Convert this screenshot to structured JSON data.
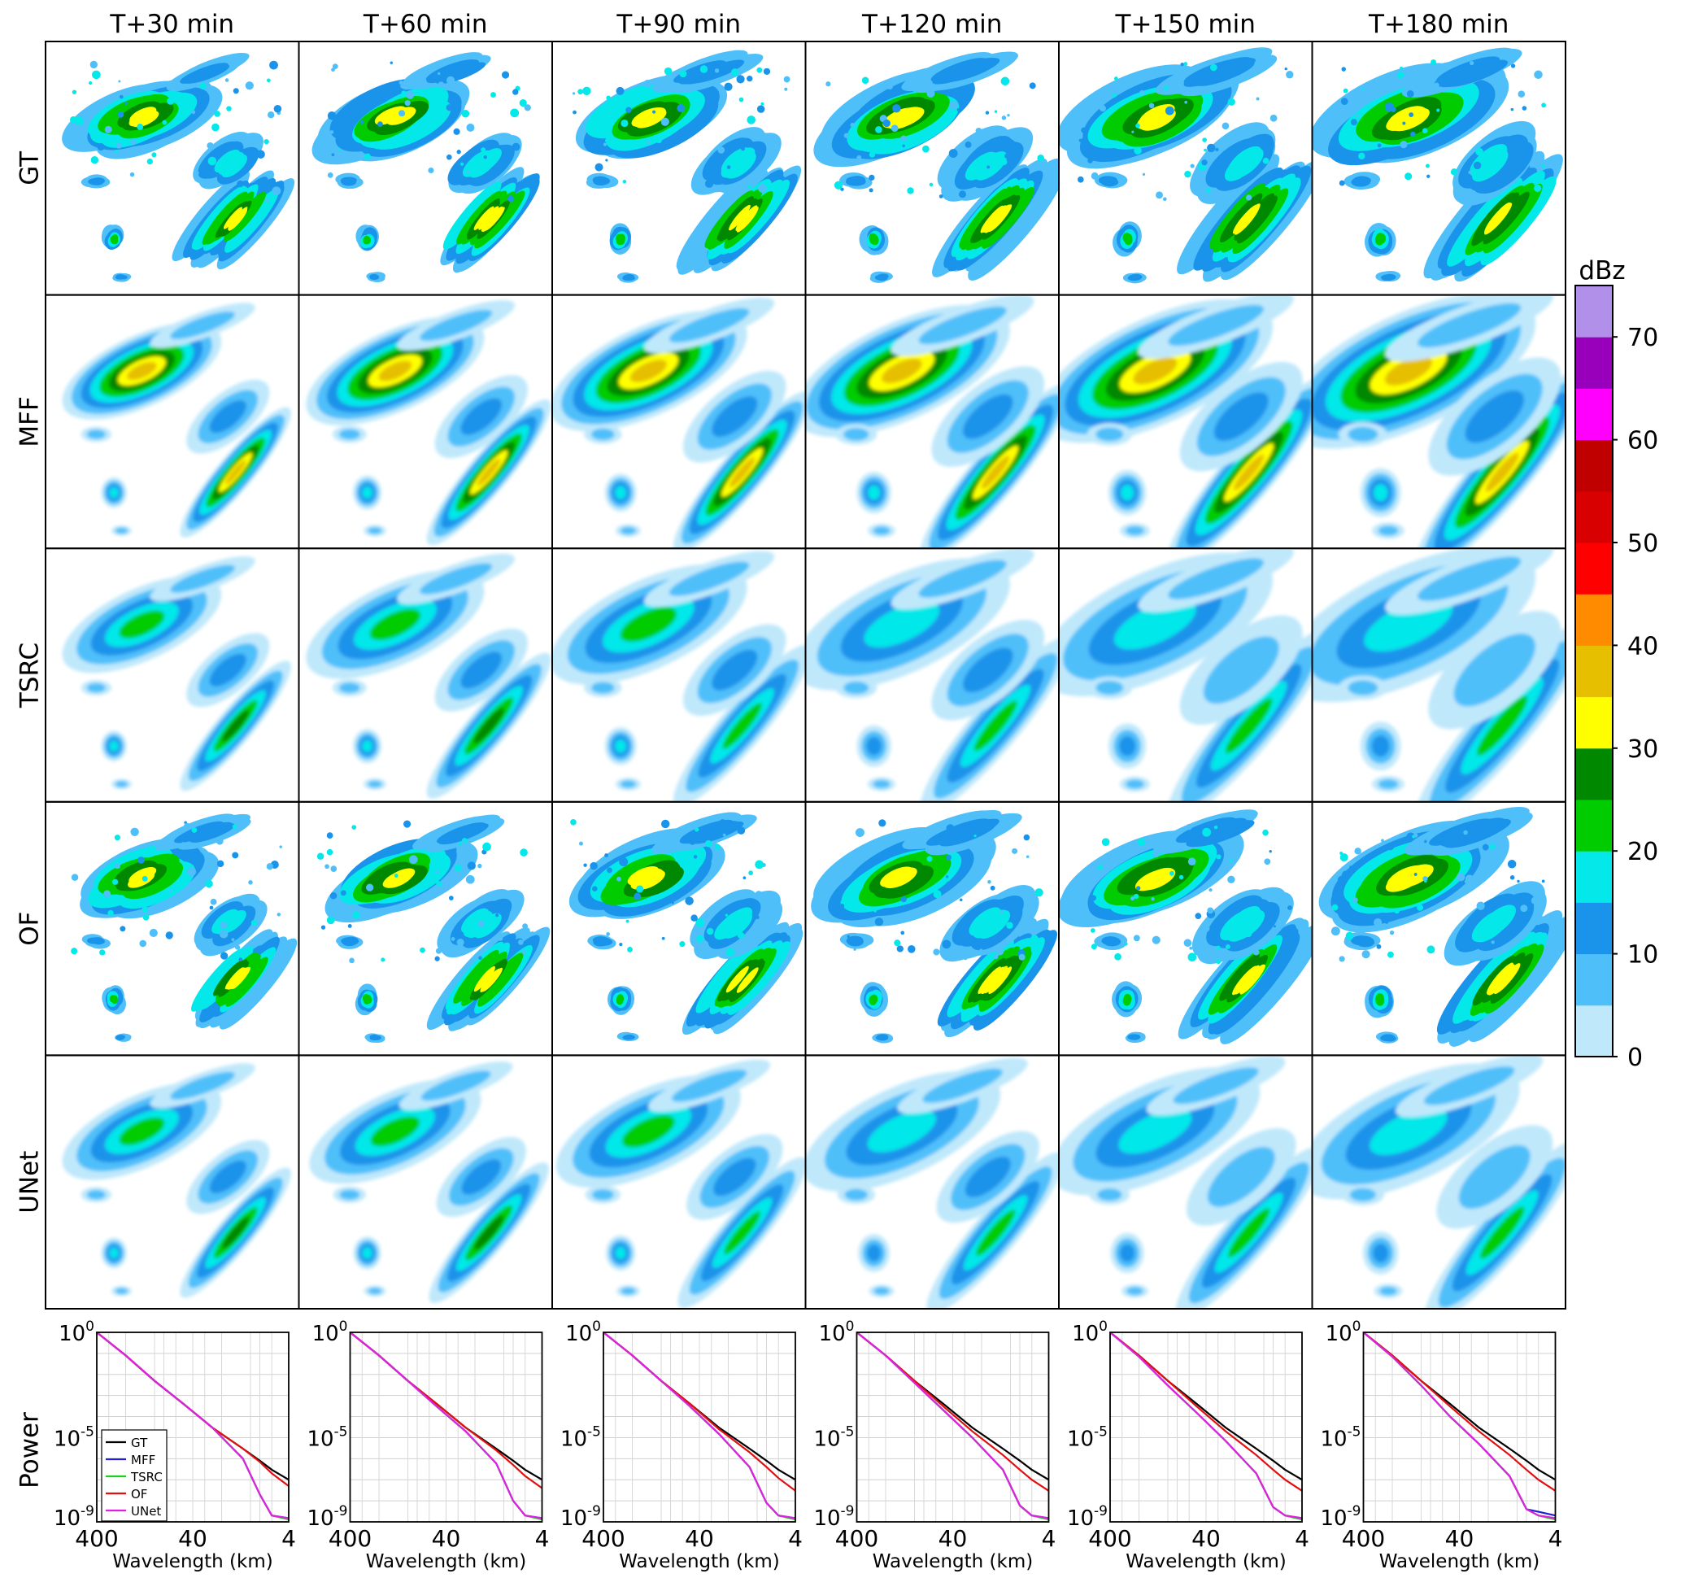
{
  "columns": [
    "T+30 min",
    "T+60 min",
    "T+90 min",
    "T+120 min",
    "T+150 min",
    "T+180 min"
  ],
  "rows": [
    "GT",
    "MFF",
    "TSRC",
    "OF",
    "UNet"
  ],
  "colorbar": {
    "unit": "dBz",
    "ticks": [
      "0",
      "10",
      "20",
      "30",
      "40",
      "50",
      "60",
      "70"
    ],
    "min": 0,
    "max": 75,
    "step": 5,
    "colors": [
      "#bfe8fb",
      "#4fbffa",
      "#1a93ea",
      "#04e8e9",
      "#00cc00",
      "#008800",
      "#ffff00",
      "#e6c000",
      "#ff8c00",
      "#ff0000",
      "#d80000",
      "#c00000",
      "#ff00ff",
      "#9900bb",
      "#b090e8"
    ]
  },
  "chart_data": {
    "type": "line",
    "ylabel": "Power",
    "xlabel": "Wavelength (km)",
    "x_ticks": [
      "400",
      "40",
      "4"
    ],
    "y_ticks": [
      "10^0",
      "10^-5",
      "10^-9"
    ],
    "xscale": "log",
    "yscale": "log",
    "xlim": [
      400,
      4
    ],
    "ylim": [
      1e-09,
      1
    ],
    "legend_entries": [
      "GT",
      "MFF",
      "TSRC",
      "OF",
      "UNet"
    ],
    "legend_placement": "lower-left (first panel only)",
    "series_colors": {
      "GT": "#000000",
      "MFF": "#1f1fd6",
      "TSRC": "#22cc22",
      "OF": "#e01010",
      "UNet": "#e020e0"
    },
    "wavelength_km": [
      400,
      200,
      100,
      50,
      25,
      12,
      8,
      6,
      4
    ],
    "panels": [
      {
        "column": "T+30 min",
        "series": [
          {
            "name": "GT",
            "values": [
              1,
              0.08,
              0.005,
              0.0004,
              3e-05,
              3e-06,
              8e-07,
              3e-07,
              1e-07
            ]
          },
          {
            "name": "MFF",
            "values": [
              1,
              0.08,
              0.005,
              0.0004,
              3e-05,
              1e-06,
              2e-08,
              2e-09,
              1.5e-09
            ]
          },
          {
            "name": "TSRC",
            "values": [
              1,
              0.08,
              0.005,
              0.0004,
              3e-05,
              1e-06,
              2e-08,
              2e-09,
              1.3e-09
            ]
          },
          {
            "name": "OF",
            "values": [
              1,
              0.08,
              0.005,
              0.0004,
              3e-05,
              3e-06,
              7e-07,
              2e-07,
              5e-08
            ]
          },
          {
            "name": "UNet",
            "values": [
              1,
              0.08,
              0.005,
              0.0004,
              3e-05,
              1e-06,
              2e-08,
              2e-09,
              1.5e-09
            ]
          }
        ]
      },
      {
        "column": "T+60 min",
        "series": [
          {
            "name": "GT",
            "values": [
              1,
              0.08,
              0.005,
              0.0004,
              3e-05,
              3e-06,
              8e-07,
              3e-07,
              1e-07
            ]
          },
          {
            "name": "MFF",
            "values": [
              1,
              0.08,
              0.005,
              0.0003,
              2e-05,
              6e-07,
              1e-08,
              2e-09,
              1.5e-09
            ]
          },
          {
            "name": "TSRC",
            "values": [
              1,
              0.08,
              0.005,
              0.0003,
              2e-05,
              6e-07,
              1e-08,
              2e-09,
              1.3e-09
            ]
          },
          {
            "name": "OF",
            "values": [
              1,
              0.08,
              0.005,
              0.0004,
              3e-05,
              2.5e-06,
              5e-07,
              1.5e-07,
              4e-08
            ]
          },
          {
            "name": "UNet",
            "values": [
              1,
              0.08,
              0.005,
              0.0003,
              2e-05,
              6e-07,
              1e-08,
              2e-09,
              1.5e-09
            ]
          }
        ]
      },
      {
        "column": "T+90 min",
        "series": [
          {
            "name": "GT",
            "values": [
              1,
              0.08,
              0.005,
              0.0004,
              3e-05,
              3e-06,
              8e-07,
              3e-07,
              1e-07
            ]
          },
          {
            "name": "MFF",
            "values": [
              1,
              0.08,
              0.005,
              0.0003,
              1.5e-05,
              4e-07,
              8e-09,
              2e-09,
              1.5e-09
            ]
          },
          {
            "name": "TSRC",
            "values": [
              1,
              0.08,
              0.005,
              0.0003,
              1.5e-05,
              4e-07,
              8e-09,
              2e-09,
              1.3e-09
            ]
          },
          {
            "name": "OF",
            "values": [
              1,
              0.08,
              0.005,
              0.0004,
              2.5e-05,
              2e-06,
              4e-07,
              1.2e-07,
              3e-08
            ]
          },
          {
            "name": "UNet",
            "values": [
              1,
              0.08,
              0.005,
              0.0003,
              1.5e-05,
              4e-07,
              8e-09,
              2e-09,
              1.5e-09
            ]
          }
        ]
      },
      {
        "column": "T+120 min",
        "series": [
          {
            "name": "GT",
            "values": [
              1,
              0.08,
              0.005,
              0.0004,
              3e-05,
              3e-06,
              8e-07,
              3e-07,
              1e-07
            ]
          },
          {
            "name": "MFF",
            "values": [
              1,
              0.08,
              0.004,
              0.0002,
              1e-05,
              3e-07,
              6e-09,
              2e-09,
              1.5e-09
            ]
          },
          {
            "name": "TSRC",
            "values": [
              1,
              0.08,
              0.004,
              0.0002,
              1e-05,
              3e-07,
              6e-09,
              2e-09,
              1.3e-09
            ]
          },
          {
            "name": "OF",
            "values": [
              1,
              0.08,
              0.005,
              0.0003,
              2e-05,
              1.5e-06,
              3e-07,
              1e-07,
              3e-08
            ]
          },
          {
            "name": "UNet",
            "values": [
              1,
              0.08,
              0.004,
              0.0002,
              1e-05,
              3e-07,
              6e-09,
              2e-09,
              1.5e-09
            ]
          }
        ]
      },
      {
        "column": "T+150 min",
        "series": [
          {
            "name": "GT",
            "values": [
              1,
              0.08,
              0.005,
              0.0004,
              3e-05,
              3e-06,
              8e-07,
              3e-07,
              1e-07
            ]
          },
          {
            "name": "MFF",
            "values": [
              1,
              0.07,
              0.003,
              0.00015,
              7e-06,
              2e-07,
              5e-09,
              2e-09,
              1.5e-09
            ]
          },
          {
            "name": "TSRC",
            "values": [
              1,
              0.07,
              0.003,
              0.00015,
              7e-06,
              2e-07,
              5e-09,
              2e-09,
              1.3e-09
            ]
          },
          {
            "name": "OF",
            "values": [
              1,
              0.08,
              0.005,
              0.0003,
              2e-05,
              1.5e-06,
              3e-07,
              1e-07,
              3e-08
            ]
          },
          {
            "name": "UNet",
            "values": [
              1,
              0.07,
              0.003,
              0.00015,
              7e-06,
              2e-07,
              5e-09,
              2e-09,
              1.5e-09
            ]
          }
        ]
      },
      {
        "column": "T+180 min",
        "series": [
          {
            "name": "GT",
            "values": [
              1,
              0.08,
              0.005,
              0.0004,
              3e-05,
              3e-06,
              8e-07,
              3e-07,
              1e-07
            ]
          },
          {
            "name": "MFF",
            "values": [
              1,
              0.07,
              0.003,
              0.0001,
              5e-06,
              1.5e-07,
              4e-09,
              3e-09,
              2e-09
            ]
          },
          {
            "name": "TSRC",
            "values": [
              1,
              0.07,
              0.003,
              0.0001,
              5e-06,
              1.5e-07,
              4e-09,
              2e-09,
              1.3e-09
            ]
          },
          {
            "name": "OF",
            "values": [
              1,
              0.08,
              0.005,
              0.0003,
              2e-05,
              1.5e-06,
              3e-07,
              1e-07,
              3e-08
            ]
          },
          {
            "name": "UNet",
            "values": [
              1,
              0.07,
              0.003,
              0.0001,
              5e-06,
              1.5e-07,
              4e-09,
              2e-09,
              1.5e-09
            ]
          }
        ]
      }
    ]
  }
}
